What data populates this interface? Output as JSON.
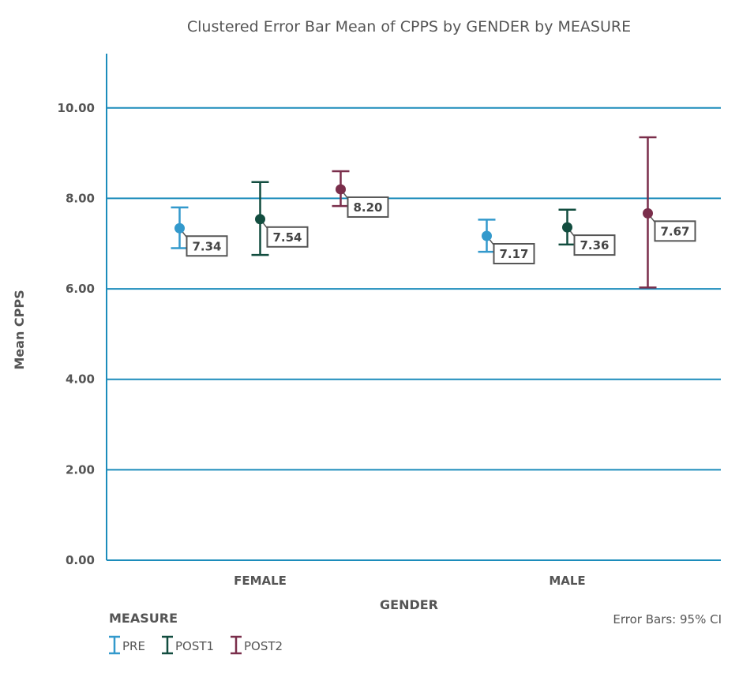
{
  "chart_data": {
    "type": "scatter",
    "subtype": "clustered-error-bar",
    "title": "Clustered Error Bar Mean of CPPS by GENDER by MEASURE",
    "xlabel": "GENDER",
    "ylabel": "Mean CPPS",
    "categories": [
      "FEMALE",
      "MALE"
    ],
    "ylim": [
      0,
      11.2
    ],
    "yticks": [
      0,
      2,
      4,
      6,
      8,
      10
    ],
    "ytick_labels": [
      "0.00",
      "2.00",
      "4.00",
      "6.00",
      "8.00",
      "10.00"
    ],
    "grid": true,
    "legend": {
      "title": "MEASURE",
      "placement": "bottom-left"
    },
    "footnote": "Error Bars: 95% CI",
    "series": [
      {
        "name": "PRE",
        "color": "#3399cc",
        "means": [
          7.34,
          7.17
        ],
        "value_labels": [
          "7.34",
          "7.17"
        ],
        "ci_lower": [
          6.9,
          6.82
        ],
        "ci_upper": [
          7.8,
          7.53
        ]
      },
      {
        "name": "POST1",
        "color": "#124d3f",
        "means": [
          7.54,
          7.36
        ],
        "value_labels": [
          "7.54",
          "7.36"
        ],
        "ci_lower": [
          6.75,
          6.98
        ],
        "ci_upper": [
          8.36,
          7.75
        ]
      },
      {
        "name": "POST2",
        "color": "#7a2e4b",
        "means": [
          8.2,
          7.67
        ],
        "value_labels": [
          "8.20",
          "7.67"
        ],
        "ci_lower": [
          7.83,
          6.03
        ],
        "ci_upper": [
          8.6,
          9.35
        ]
      }
    ]
  },
  "colors": {
    "axis": "#1c8cbb",
    "gridline": "#1c8cbb",
    "text": "#555555",
    "label_border": "#555555"
  }
}
